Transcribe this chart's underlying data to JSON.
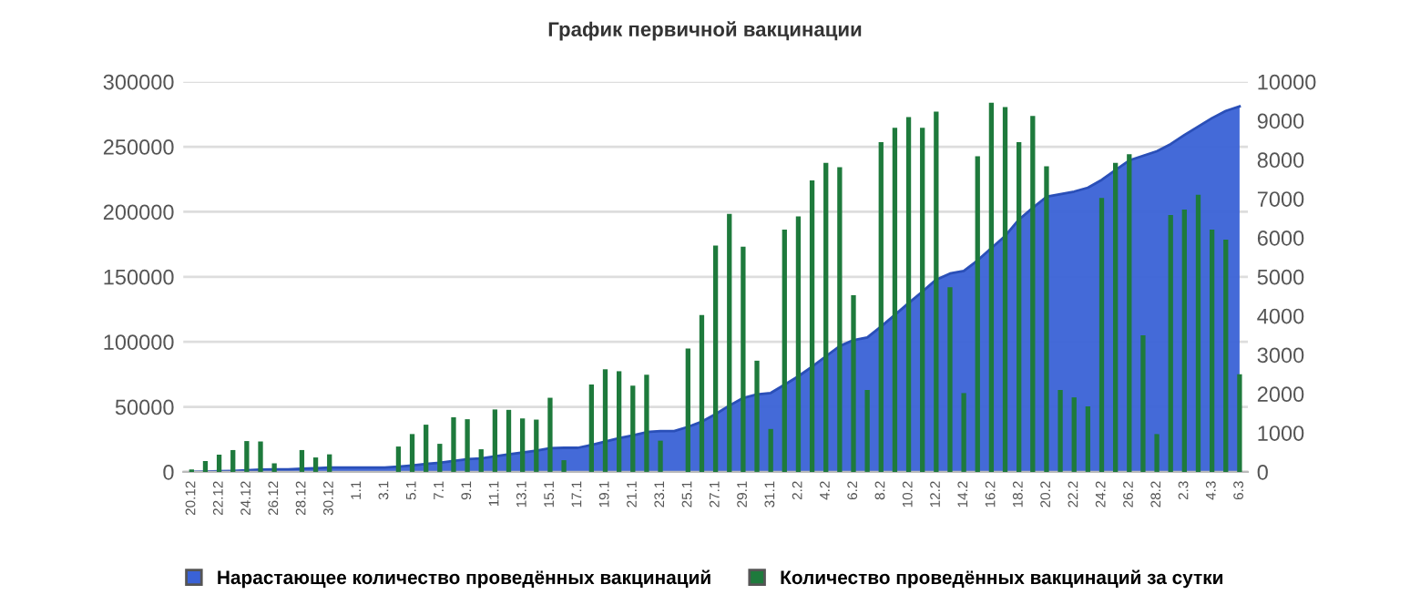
{
  "chart_data": {
    "type": "bar",
    "title": "График первичной вакцинации",
    "categories": [
      "20.12",
      null,
      "22.12",
      null,
      "24.12",
      null,
      "26.12",
      null,
      "28.12",
      null,
      "30.12",
      null,
      "1.1",
      null,
      "3.1",
      null,
      "5.1",
      null,
      "7.1",
      null,
      "9.1",
      null,
      "11.1",
      null,
      "13.1",
      null,
      "15.1",
      null,
      "17.1",
      null,
      "19.1",
      null,
      "21.1",
      null,
      "23.1",
      null,
      "25.1",
      null,
      "27.1",
      null,
      "29.1",
      null,
      "31.1",
      null,
      "2.2",
      null,
      "4.2",
      null,
      "6.2",
      null,
      "8.2",
      null,
      "10.2",
      null,
      "12.2",
      null,
      "14.2",
      null,
      "16.2",
      null,
      "18.2",
      null,
      "20.2",
      null,
      "22.2",
      null,
      "24.2",
      null,
      "26.2",
      null,
      "28.2",
      null,
      "2.3",
      null,
      "4.3",
      null,
      "6.3"
    ],
    "series": [
      {
        "name": "Нарастающее количество проведённых вакцинаций",
        "type": "area",
        "color": "#3a62d6",
        "values": [
          0,
          200,
          500,
          800,
          1300,
          1800,
          2000,
          2000,
          2500,
          2900,
          3300,
          3300,
          3300,
          3300,
          3300,
          4000,
          5000,
          6200,
          7000,
          8400,
          9800,
          10300,
          12000,
          13600,
          15000,
          16300,
          18200,
          18500,
          18500,
          20700,
          23300,
          25900,
          28100,
          30600,
          31400,
          31400,
          34600,
          38600,
          44400,
          51000,
          56800,
          59600,
          60700,
          67000,
          73500,
          81000,
          88900,
          96700,
          101300,
          103400,
          111800,
          120700,
          129800,
          138600,
          147800,
          152500,
          154500,
          162600,
          172100,
          181400,
          194000,
          203000,
          211500,
          213500,
          215500,
          218500,
          224500,
          232000,
          239500,
          243000,
          246500,
          252000,
          259000,
          265500,
          272000,
          277500,
          281000
        ]
      },
      {
        "name": "Количество проведённых вакцинаций за сутки",
        "axis": "y2",
        "color": "#1e7a3c",
        "values": [
          60,
          280,
          440,
          560,
          790,
          780,
          220,
          0,
          560,
          370,
          450,
          0,
          0,
          0,
          0,
          650,
          970,
          1210,
          720,
          1400,
          1350,
          580,
          1600,
          1590,
          1370,
          1340,
          1900,
          300,
          0,
          2240,
          2630,
          2580,
          2210,
          2490,
          800,
          0,
          3160,
          4020,
          5800,
          6610,
          5770,
          2850,
          1100,
          6210,
          6550,
          7470,
          7920,
          7810,
          4530,
          2100,
          8450,
          8820,
          9090,
          8820,
          9230,
          4730,
          2020,
          8090,
          9460,
          9350,
          8450,
          9120,
          7830,
          2100,
          1910,
          1680,
          7020,
          7920,
          8140,
          3500,
          970,
          6580,
          6720,
          7100,
          6210,
          5950,
          2500
        ]
      }
    ],
    "ylim": [
      0,
      300000
    ],
    "yticks": [
      0,
      50000,
      100000,
      150000,
      200000,
      250000,
      300000
    ],
    "y2lim": [
      0,
      10000
    ],
    "y2ticks": [
      0,
      1000,
      2000,
      3000,
      4000,
      5000,
      6000,
      7000,
      8000,
      9000,
      10000
    ],
    "grid": "y",
    "legend": "bottom"
  }
}
